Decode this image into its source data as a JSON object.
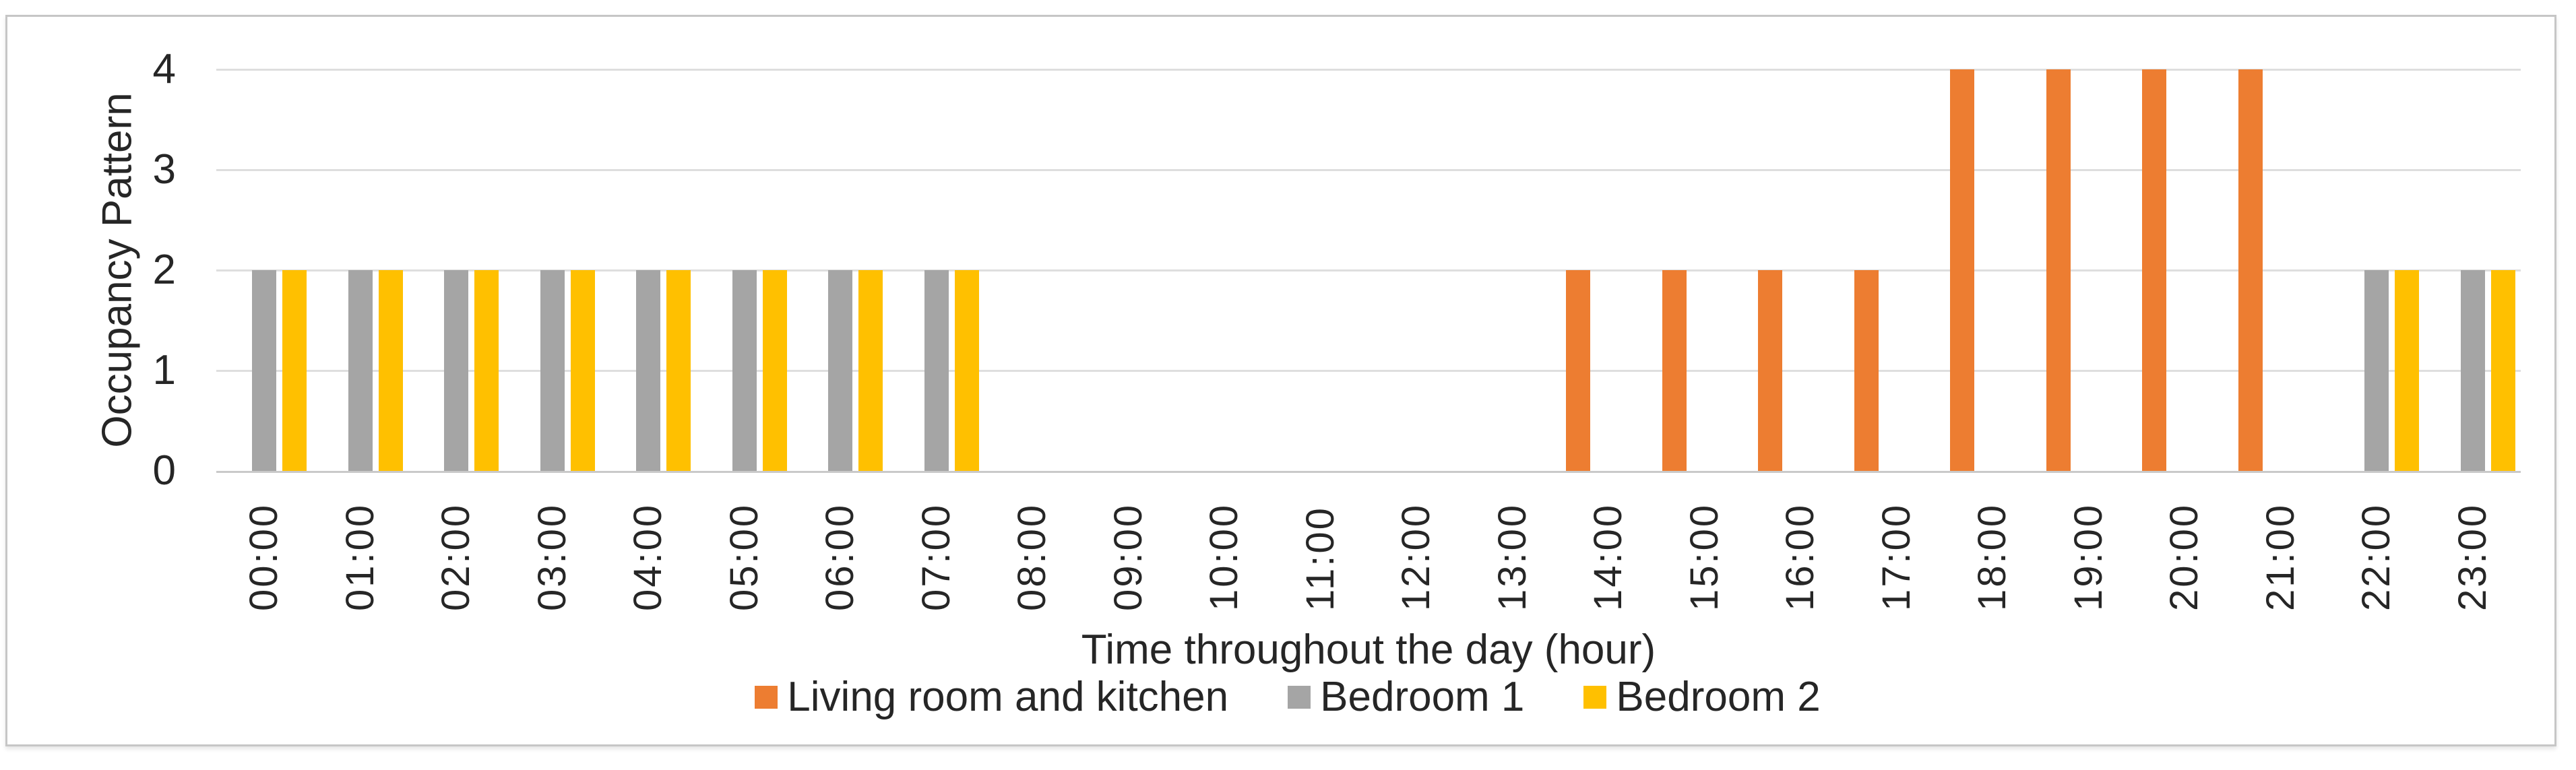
{
  "chart_data": {
    "type": "bar",
    "title": "",
    "xlabel": "Time throughout the day (hour)",
    "ylabel": "Occupancy Pattern",
    "ylim": [
      0,
      4
    ],
    "yticks": [
      0,
      1,
      2,
      3,
      4
    ],
    "grid": true,
    "legend_position": "bottom",
    "categories": [
      "00:00",
      "01:00",
      "02:00",
      "03:00",
      "04:00",
      "05:00",
      "06:00",
      "07:00",
      "08:00",
      "09:00",
      "10:00",
      "11:00",
      "12:00",
      "13:00",
      "14:00",
      "15:00",
      "16:00",
      "17:00",
      "18:00",
      "19:00",
      "20:00",
      "21:00",
      "22:00",
      "23:00"
    ],
    "series": [
      {
        "name": "Living room and kitchen",
        "color": "#ED7D31",
        "values": [
          0,
          0,
          0,
          0,
          0,
          0,
          0,
          0,
          0,
          0,
          0,
          0,
          0,
          0,
          2,
          2,
          2,
          2,
          4,
          4,
          4,
          4,
          0,
          0
        ]
      },
      {
        "name": "Bedroom 1",
        "color": "#A5A5A5",
        "values": [
          2,
          2,
          2,
          2,
          2,
          2,
          2,
          2,
          0,
          0,
          0,
          0,
          0,
          0,
          0,
          0,
          0,
          0,
          0,
          0,
          0,
          0,
          2,
          2
        ]
      },
      {
        "name": "Bedroom 2",
        "color": "#FFC000",
        "values": [
          2,
          2,
          2,
          2,
          2,
          2,
          2,
          2,
          0,
          0,
          0,
          0,
          0,
          0,
          0,
          0,
          0,
          0,
          0,
          0,
          0,
          0,
          2,
          2
        ]
      }
    ]
  },
  "style": {
    "gridline_color": "#dedede",
    "axis_line_color": "#c9c9c9",
    "text_color": "#262626",
    "card_border_color": "#c6c6c6",
    "background": "#ffffff"
  }
}
